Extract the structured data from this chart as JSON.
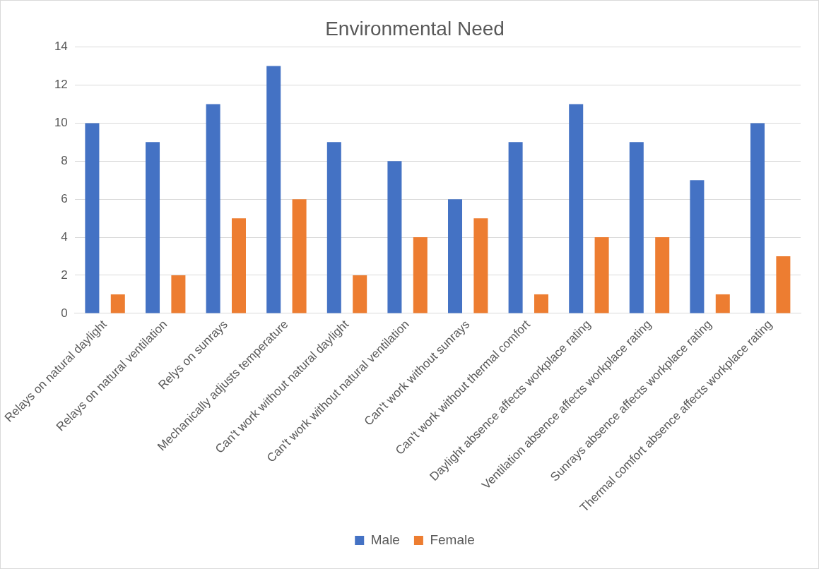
{
  "chart_data": {
    "type": "bar",
    "title": "Environmental Need",
    "categories": [
      "Relays on natural daylight",
      "Relays on natural ventilation",
      "Relys on sunrays",
      "Mechanically adjusts temperature",
      "Can't work without natural daylight",
      "Can't work without natural ventilation",
      "Can't work without sunrays",
      "Can't work without thermal comfort",
      "Daylight absence affects workplace rating",
      "Ventilation absence affects workplace rating",
      "Sunrays absence affects workplace rating",
      "Thermal comfort absence affects workplace rating"
    ],
    "series": [
      {
        "name": "Male",
        "color": "#4472c4",
        "values": [
          10,
          9,
          11,
          13,
          9,
          8,
          6,
          9,
          11,
          9,
          7,
          10
        ]
      },
      {
        "name": "Female",
        "color": "#ed7d31",
        "values": [
          1,
          2,
          5,
          6,
          2,
          4,
          5,
          1,
          4,
          4,
          1,
          3
        ]
      }
    ],
    "ylim": [
      0,
      14
    ],
    "yticks": [
      0,
      2,
      4,
      6,
      8,
      10,
      12,
      14
    ],
    "grid": "y",
    "legend": "bottom"
  }
}
